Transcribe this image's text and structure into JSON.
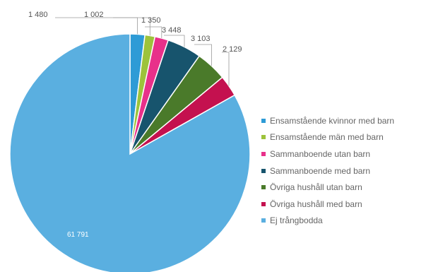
{
  "chart_data": {
    "type": "pie",
    "title": "",
    "categories": [
      "Ensamstående kvinnor med barn",
      "Ensamstående män med barn",
      "Sammanboende utan barn",
      "Sammanboende med barn",
      "Övriga hushåll utan barn",
      "Övriga hushåll med barn",
      "Ej trångbodda"
    ],
    "values": [
      1480,
      1002,
      1350,
      3448,
      3103,
      2129,
      61791
    ],
    "labels": [
      "1 480",
      "1 002",
      "1 350",
      "3 448",
      "3 103",
      "2 129",
      "61 791"
    ],
    "colors": [
      "#2e9bd6",
      "#9dc33b",
      "#e8308a",
      "#17546d",
      "#4a7a2a",
      "#c4114f",
      "#5aafe0"
    ],
    "legend": "right"
  }
}
